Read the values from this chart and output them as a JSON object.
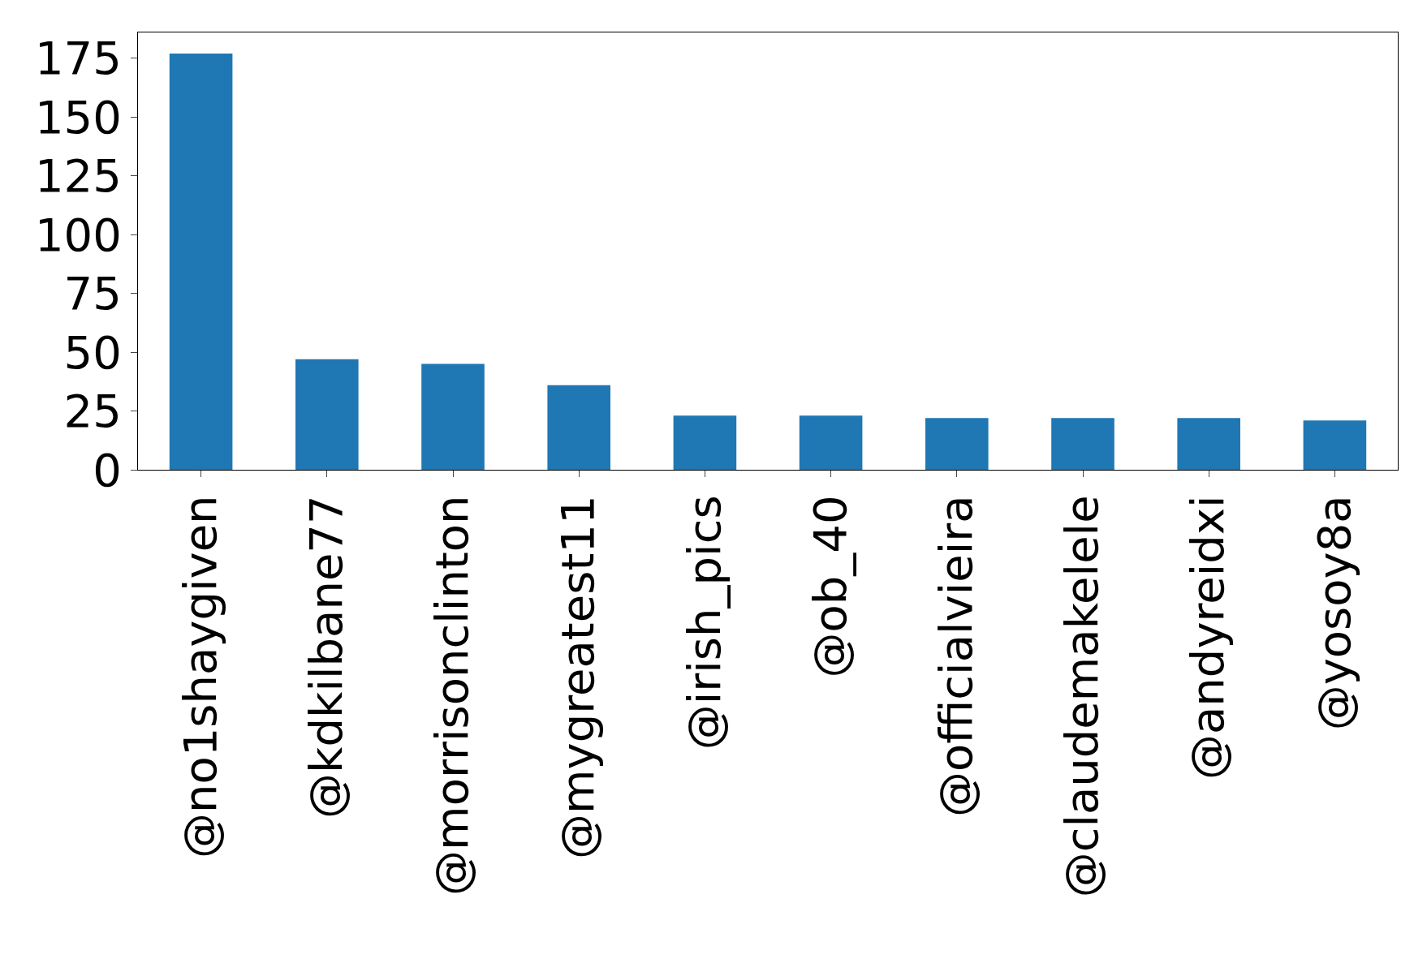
{
  "chart_data": {
    "type": "bar",
    "categories": [
      "@no1shaygiven",
      "@kdkilbane77",
      "@morrisonclinton",
      "@mygreatest11",
      "@irish_pics",
      "@ob_40",
      "@officialvieira",
      "@claudemakelele",
      "@andyreidxi",
      "@yosoy8a"
    ],
    "values": [
      177,
      47,
      45,
      36,
      23,
      23,
      22,
      22,
      22,
      21
    ],
    "color": "#1f77b4",
    "ylim": [
      0,
      186
    ],
    "yticks": [
      0,
      25,
      50,
      75,
      100,
      125,
      150,
      175
    ],
    "grid": false
  }
}
